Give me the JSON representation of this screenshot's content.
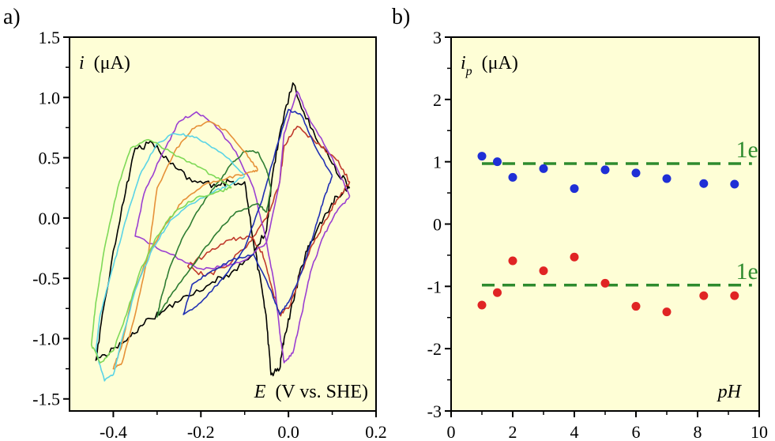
{
  "figure": {
    "background": "#ffffff",
    "plot_background": "#fefed6"
  },
  "chart_data": [
    {
      "panel_label": "a)",
      "type": "line",
      "title": "",
      "xlabel": "E (V vs. SHE)",
      "xlabel_italic_part": "E",
      "xlabel_rest": "(V vs. SHE)",
      "ylabel": "i (μA)",
      "ylabel_italic_part": "i",
      "ylabel_rest": "(μA)",
      "xlim": [
        -0.5,
        0.2
      ],
      "ylim": [
        -1.6,
        1.5
      ],
      "xticks": [
        -0.4,
        -0.2,
        0.0,
        0.2
      ],
      "xtick_labels": [
        "-0.4",
        "-0.2",
        "0.0",
        "0.2"
      ],
      "yticks": [
        -1.5,
        -1.0,
        -0.5,
        0.0,
        0.5,
        1.0,
        1.5
      ],
      "ytick_labels": [
        "-1.5",
        "-1.0",
        "-0.5",
        "0.0",
        "0.5",
        "1.0",
        "1.5"
      ],
      "grid": false,
      "legend": "none",
      "series": [
        {
          "color": "#000000",
          "noise": 0.03,
          "points": [
            [
              0.14,
              0.25
            ],
            [
              0.1,
              0.45
            ],
            [
              0.05,
              0.75
            ],
            [
              0.01,
              1.12
            ],
            [
              -0.02,
              0.7
            ],
            [
              -0.04,
              0.25
            ],
            [
              -0.05,
              -0.1
            ],
            [
              -0.08,
              -0.3
            ],
            [
              -0.13,
              -0.45
            ],
            [
              -0.18,
              -0.55
            ],
            [
              -0.24,
              -0.65
            ],
            [
              -0.29,
              -0.78
            ],
            [
              -0.33,
              -0.88
            ],
            [
              -0.36,
              -0.98
            ],
            [
              -0.4,
              -1.08
            ],
            [
              -0.44,
              -1.18
            ],
            [
              -0.42,
              -0.7
            ],
            [
              -0.38,
              0.1
            ],
            [
              -0.35,
              0.58
            ],
            [
              -0.31,
              0.62
            ],
            [
              -0.27,
              0.45
            ],
            [
              -0.22,
              0.3
            ],
            [
              -0.17,
              0.28
            ],
            [
              -0.13,
              0.3
            ],
            [
              -0.1,
              0.3
            ],
            [
              -0.08,
              -0.2
            ],
            [
              -0.06,
              -0.6
            ],
            [
              -0.05,
              -0.85
            ],
            [
              -0.04,
              -1.3
            ],
            [
              -0.02,
              -1.25
            ],
            [
              -0.01,
              -1.0
            ],
            [
              0.01,
              -0.7
            ],
            [
              0.03,
              -0.4
            ],
            [
              0.05,
              -0.2
            ],
            [
              0.08,
              0.0
            ],
            [
              0.11,
              0.18
            ],
            [
              0.14,
              0.25
            ]
          ]
        },
        {
          "color": "#c0392b",
          "noise": 0.02,
          "points": [
            [
              0.14,
              0.3
            ],
            [
              0.11,
              0.48
            ],
            [
              0.07,
              0.62
            ],
            [
              0.02,
              0.76
            ],
            [
              -0.01,
              0.6
            ],
            [
              -0.02,
              0.3
            ],
            [
              -0.05,
              0.0
            ],
            [
              -0.09,
              -0.2
            ],
            [
              -0.14,
              -0.4
            ],
            [
              -0.19,
              -0.48
            ],
            [
              -0.23,
              -0.4
            ],
            [
              -0.18,
              -0.28
            ],
            [
              -0.13,
              -0.18
            ],
            [
              -0.09,
              -0.15
            ],
            [
              -0.06,
              -0.28
            ],
            [
              -0.04,
              -0.55
            ],
            [
              -0.02,
              -0.8
            ],
            [
              0.0,
              -0.75
            ],
            [
              0.02,
              -0.55
            ],
            [
              0.05,
              -0.25
            ],
            [
              0.08,
              -0.05
            ],
            [
              0.11,
              0.15
            ],
            [
              0.14,
              0.3
            ]
          ]
        },
        {
          "color": "#9b3fd1",
          "noise": 0.012,
          "points": [
            [
              0.14,
              0.18
            ],
            [
              0.1,
              0.5
            ],
            [
              0.05,
              0.8
            ],
            [
              0.02,
              1.05
            ],
            [
              -0.01,
              0.7
            ],
            [
              -0.02,
              0.3
            ],
            [
              -0.05,
              -0.2
            ],
            [
              -0.1,
              -0.35
            ],
            [
              -0.15,
              -0.4
            ],
            [
              -0.2,
              -0.42
            ],
            [
              -0.27,
              -0.3
            ],
            [
              -0.35,
              -0.15
            ],
            [
              -0.33,
              0.2
            ],
            [
              -0.29,
              0.52
            ],
            [
              -0.25,
              0.8
            ],
            [
              -0.21,
              0.88
            ],
            [
              -0.17,
              0.78
            ],
            [
              -0.12,
              0.55
            ],
            [
              -0.08,
              0.25
            ],
            [
              -0.05,
              -0.2
            ],
            [
              -0.03,
              -0.6
            ],
            [
              -0.02,
              -0.95
            ],
            [
              -0.01,
              -1.2
            ],
            [
              0.01,
              -1.12
            ],
            [
              0.03,
              -0.8
            ],
            [
              0.05,
              -0.45
            ],
            [
              0.08,
              -0.15
            ],
            [
              0.11,
              0.05
            ],
            [
              0.14,
              0.18
            ]
          ]
        },
        {
          "color": "#1f2fb3",
          "noise": 0.01,
          "points": [
            [
              0.1,
              0.35
            ],
            [
              0.06,
              0.6
            ],
            [
              0.03,
              0.85
            ],
            [
              0.0,
              0.9
            ],
            [
              -0.03,
              0.55
            ],
            [
              -0.06,
              0.15
            ],
            [
              -0.1,
              -0.25
            ],
            [
              -0.15,
              -0.5
            ],
            [
              -0.2,
              -0.7
            ],
            [
              -0.24,
              -0.8
            ],
            [
              -0.22,
              -0.55
            ],
            [
              -0.18,
              -0.45
            ],
            [
              -0.13,
              -0.35
            ],
            [
              -0.08,
              -0.3
            ],
            [
              -0.04,
              -0.6
            ],
            [
              -0.02,
              -0.8
            ],
            [
              0.0,
              -0.7
            ],
            [
              0.03,
              -0.45
            ],
            [
              0.06,
              -0.1
            ],
            [
              0.08,
              0.15
            ],
            [
              0.1,
              0.35
            ]
          ]
        },
        {
          "color": "#2e7d32",
          "noise": 0.01,
          "points": [
            [
              -0.07,
              0.55
            ],
            [
              -0.1,
              0.55
            ],
            [
              -0.13,
              0.45
            ],
            [
              -0.16,
              0.3
            ],
            [
              -0.2,
              0.1
            ],
            [
              -0.24,
              -0.15
            ],
            [
              -0.27,
              -0.4
            ],
            [
              -0.29,
              -0.65
            ],
            [
              -0.3,
              -0.82
            ],
            [
              -0.27,
              -0.65
            ],
            [
              -0.22,
              -0.4
            ],
            [
              -0.17,
              -0.15
            ],
            [
              -0.12,
              0.05
            ],
            [
              -0.07,
              0.12
            ],
            [
              -0.05,
              0.05
            ],
            [
              -0.04,
              0.25
            ],
            [
              -0.05,
              0.4
            ],
            [
              -0.07,
              0.55
            ]
          ]
        },
        {
          "color": "#e69138",
          "noise": 0.01,
          "points": [
            [
              -0.07,
              0.4
            ],
            [
              -0.1,
              0.55
            ],
            [
              -0.14,
              0.72
            ],
            [
              -0.18,
              0.8
            ],
            [
              -0.22,
              0.74
            ],
            [
              -0.26,
              0.55
            ],
            [
              -0.3,
              0.25
            ],
            [
              -0.32,
              -0.3
            ],
            [
              -0.35,
              -0.8
            ],
            [
              -0.38,
              -1.2
            ],
            [
              -0.4,
              -1.25
            ],
            [
              -0.38,
              -1.05
            ],
            [
              -0.36,
              -0.7
            ],
            [
              -0.32,
              -0.3
            ],
            [
              -0.28,
              -0.05
            ],
            [
              -0.24,
              0.15
            ],
            [
              -0.19,
              0.28
            ],
            [
              -0.14,
              0.33
            ],
            [
              -0.09,
              0.38
            ],
            [
              -0.07,
              0.4
            ]
          ]
        },
        {
          "color": "#5ad4e6",
          "noise": 0.01,
          "points": [
            [
              -0.1,
              0.35
            ],
            [
              -0.14,
              0.5
            ],
            [
              -0.18,
              0.6
            ],
            [
              -0.22,
              0.68
            ],
            [
              -0.26,
              0.7
            ],
            [
              -0.3,
              0.62
            ],
            [
              -0.34,
              0.35
            ],
            [
              -0.37,
              0.0
            ],
            [
              -0.4,
              -0.4
            ],
            [
              -0.43,
              -0.8
            ],
            [
              -0.44,
              -1.1
            ],
            [
              -0.42,
              -1.35
            ],
            [
              -0.4,
              -1.3
            ],
            [
              -0.38,
              -1.0
            ],
            [
              -0.35,
              -0.6
            ],
            [
              -0.31,
              -0.25
            ],
            [
              -0.27,
              -0.02
            ],
            [
              -0.22,
              0.12
            ],
            [
              -0.17,
              0.22
            ],
            [
              -0.13,
              0.28
            ],
            [
              -0.1,
              0.35
            ]
          ]
        },
        {
          "color": "#7ed957",
          "noise": 0.012,
          "points": [
            [
              -0.13,
              0.25
            ],
            [
              -0.17,
              0.35
            ],
            [
              -0.22,
              0.45
            ],
            [
              -0.27,
              0.55
            ],
            [
              -0.32,
              0.65
            ],
            [
              -0.36,
              0.58
            ],
            [
              -0.39,
              0.25
            ],
            [
              -0.42,
              -0.25
            ],
            [
              -0.44,
              -0.7
            ],
            [
              -0.45,
              -1.05
            ],
            [
              -0.43,
              -1.2
            ],
            [
              -0.4,
              -1.1
            ],
            [
              -0.37,
              -0.8
            ],
            [
              -0.34,
              -0.45
            ],
            [
              -0.3,
              -0.15
            ],
            [
              -0.26,
              0.05
            ],
            [
              -0.21,
              0.17
            ],
            [
              -0.16,
              0.22
            ],
            [
              -0.13,
              0.25
            ]
          ]
        }
      ]
    },
    {
      "panel_label": "b)",
      "type": "scatter",
      "title": "",
      "xlabel": "pH",
      "ylabel": "i_p (μA)",
      "ylabel_main": "i",
      "ylabel_sub": "p",
      "ylabel_rest": "(μA)",
      "xlim": [
        0,
        10
      ],
      "ylim": [
        -3,
        3
      ],
      "xticks": [
        0,
        2,
        4,
        6,
        8,
        10
      ],
      "xtick_labels": [
        "0",
        "2",
        "4",
        "6",
        "8",
        "10"
      ],
      "yticks": [
        -3,
        -2,
        -1,
        0,
        1,
        2,
        3
      ],
      "ytick_labels": [
        "-3",
        "-2",
        "-1",
        "0",
        "1",
        "2",
        "3"
      ],
      "grid": false,
      "legend": "none",
      "series": [
        {
          "color": "#1f2fd6",
          "x": [
            1.0,
            1.5,
            2.0,
            3.0,
            4.0,
            5.0,
            6.0,
            7.0,
            8.2,
            9.2
          ],
          "y": [
            1.09,
            1.0,
            0.75,
            0.89,
            0.57,
            0.87,
            0.82,
            0.73,
            0.65,
            0.64
          ]
        },
        {
          "color": "#e02424",
          "x": [
            1.0,
            1.5,
            2.0,
            3.0,
            4.0,
            5.0,
            6.0,
            7.0,
            8.2,
            9.2
          ],
          "y": [
            -1.3,
            -1.1,
            -0.59,
            -0.75,
            -0.53,
            -0.95,
            -1.32,
            -1.41,
            -1.15,
            -1.15
          ]
        }
      ],
      "reference_lines": [
        {
          "label": "1e",
          "y": 0.97,
          "x": [
            1.0,
            9.2
          ],
          "color": "#2e8b2e",
          "style": "dashed"
        },
        {
          "label": "1e",
          "y": -0.98,
          "x": [
            1.0,
            9.2
          ],
          "color": "#2e8b2e",
          "style": "dashed"
        }
      ]
    }
  ]
}
